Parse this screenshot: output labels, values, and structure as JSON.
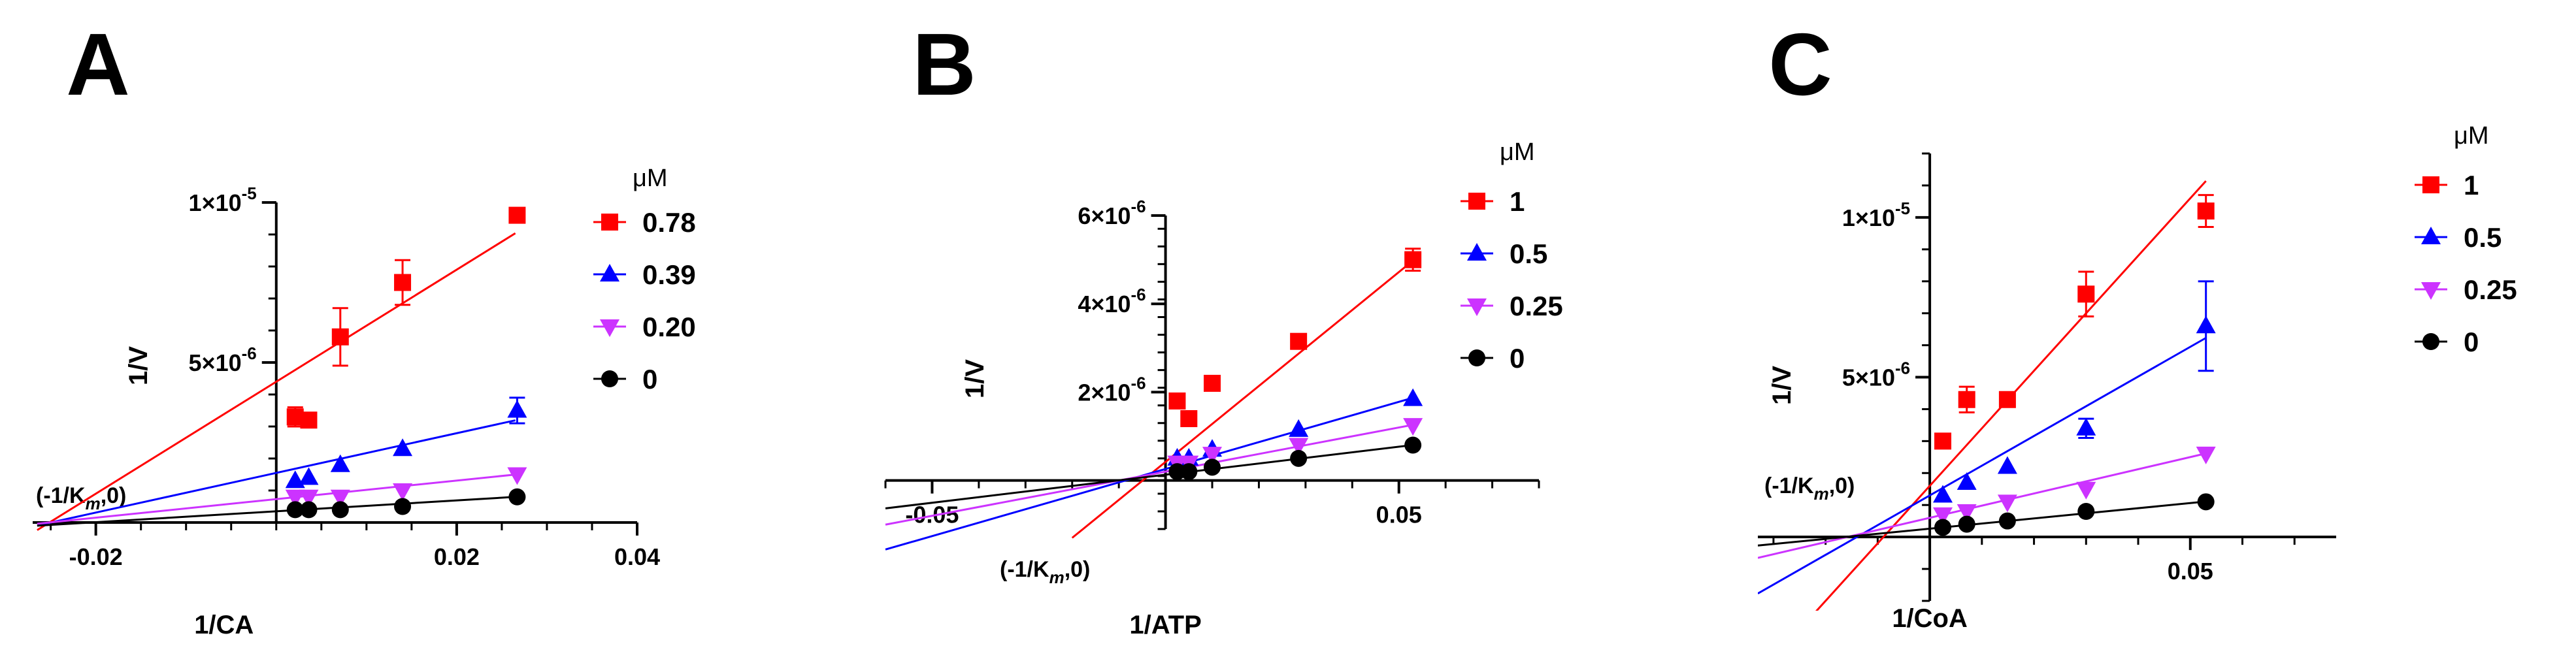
{
  "chart_data": [
    {
      "panel": "A",
      "type": "scatter",
      "xlabel": "1/CA",
      "ylabel": "1/V",
      "xlim": [
        -0.027,
        0.04
      ],
      "ylim": [
        0,
        1e-05
      ],
      "xticks": [
        {
          "value": -0.02,
          "label": "-0.02"
        },
        {
          "value": 0.02,
          "label": "0.02"
        },
        {
          "value": 0.04,
          "label": "0.04"
        }
      ],
      "yticks": [
        {
          "value": 5e-06,
          "label": "5×10",
          "exp": "-6"
        },
        {
          "value": 1e-05,
          "label": "1×10",
          "exp": "-5"
        }
      ],
      "annotation": "(-1/K",
      "annotation_sub": "m",
      "annotation_end": ",0)",
      "legend_title": "μM",
      "series": [
        {
          "name": "0.78",
          "color": "#ff0000",
          "marker": "square",
          "x": [
            0.0021,
            0.0036,
            0.0071,
            0.014,
            0.0267
          ],
          "y": [
            3.3e-06,
            3.2e-06,
            5.8e-06,
            7.5e-06,
            9.6e-06
          ],
          "err": [
            3e-07,
            0,
            9e-07,
            7e-07,
            2e-07
          ],
          "fit": [
            -0.0265,
            0.0265
          ],
          "fit_slope": 0.000175,
          "fit_intercept": 4.4e-06
        },
        {
          "name": "0.39",
          "color": "#0000ff",
          "marker": "triangle-up",
          "x": [
            0.0021,
            0.0036,
            0.0071,
            0.014,
            0.0267
          ],
          "y": [
            1.3e-06,
            1.4e-06,
            1.8e-06,
            2.3e-06,
            3.5e-06
          ],
          "err": [
            0,
            0,
            0,
            0,
            4e-07
          ],
          "fit": [
            -0.0265,
            0.0265
          ],
          "fit_slope": 6.2e-05,
          "fit_intercept": 1.55e-06
        },
        {
          "name": "0.20",
          "color": "#cc33ff",
          "marker": "triangle-down",
          "x": [
            0.0021,
            0.0036,
            0.0071,
            0.014,
            0.0267
          ],
          "y": [
            8e-07,
            8e-07,
            8e-07,
            1e-06,
            1.5e-06
          ],
          "err": [
            0,
            0,
            0,
            0,
            0
          ],
          "fit": [
            -0.0265,
            0.0265
          ],
          "fit_slope": 2.9e-05,
          "fit_intercept": 7.3e-07
        },
        {
          "name": "0",
          "color": "#000000",
          "marker": "circle",
          "x": [
            0.0021,
            0.0036,
            0.0071,
            0.014,
            0.0267
          ],
          "y": [
            4e-07,
            4e-07,
            4e-07,
            5e-07,
            8e-07
          ],
          "err": [
            0,
            0,
            0,
            0,
            0
          ],
          "fit": [
            -0.0265,
            0.0265
          ],
          "fit_slope": 1.7e-05,
          "fit_intercept": 3.5e-07
        }
      ]
    },
    {
      "panel": "B",
      "type": "scatter",
      "xlabel": "1/ATP",
      "ylabel": "1/V",
      "xlim": [
        -0.06,
        0.08
      ],
      "ylim": [
        -1.1e-06,
        6e-06
      ],
      "xticks": [
        {
          "value": -0.05,
          "label": "-0.05"
        },
        {
          "value": 0.05,
          "label": "0.05"
        }
      ],
      "yticks": [
        {
          "value": 2e-06,
          "label": "2×10",
          "exp": "-6"
        },
        {
          "value": 4e-06,
          "label": "4×10",
          "exp": "-6"
        },
        {
          "value": 6e-06,
          "label": "6×10",
          "exp": "-6"
        }
      ],
      "annotation": "(-1/K",
      "annotation_sub": "m",
      "annotation_end": ",0)",
      "legend_title": "μM",
      "series": [
        {
          "name": "1",
          "color": "#ff0000",
          "marker": "square",
          "x": [
            0.0025,
            0.005,
            0.01,
            0.0285,
            0.053
          ],
          "y": [
            1.8e-06,
            1.4e-06,
            2.2e-06,
            3.15e-06,
            5e-06
          ],
          "err": [
            0,
            0,
            0,
            1.2e-07,
            2.5e-07
          ],
          "fit": [
            -0.02,
            0.0532
          ],
          "fit_slope": 8.6e-05,
          "fit_intercept": 4.2e-07
        },
        {
          "name": "0.5",
          "color": "#0000ff",
          "marker": "triangle-up",
          "x": [
            0.0025,
            0.005,
            0.01,
            0.0285,
            0.053
          ],
          "y": [
            5e-07,
            5e-07,
            7e-07,
            1.15e-06,
            1.85e-06
          ],
          "err": [
            0,
            0,
            0,
            0,
            0
          ],
          "fit": [
            -0.06,
            0.0532
          ],
          "fit_slope": 3.04e-05,
          "fit_intercept": 2.6e-07
        },
        {
          "name": "0.25",
          "color": "#cc33ff",
          "marker": "triangle-down",
          "x": [
            0.0025,
            0.005,
            0.01,
            0.0285,
            0.053
          ],
          "y": [
            4e-07,
            4e-07,
            6e-07,
            8e-07,
            1.25e-06
          ],
          "err": [
            0,
            0,
            0,
            0,
            0
          ],
          "fit": [
            -0.06,
            0.0532
          ],
          "fit_slope": 2e-05,
          "fit_intercept": 2e-07
        },
        {
          "name": "0",
          "color": "#000000",
          "marker": "circle",
          "x": [
            0.0025,
            0.005,
            0.01,
            0.0285,
            0.053
          ],
          "y": [
            2e-07,
            2e-07,
            3e-07,
            5e-07,
            8e-07
          ],
          "err": [
            0,
            0,
            0,
            0,
            0
          ],
          "fit": [
            -0.06,
            0.0532
          ],
          "fit_slope": 1.27e-05,
          "fit_intercept": 1.3e-07
        }
      ]
    },
    {
      "panel": "C",
      "type": "scatter",
      "xlabel": "1/CoA",
      "ylabel": "1/V",
      "xlim": [
        -0.033,
        0.078
      ],
      "ylim": [
        -2e-06,
        1.2e-05
      ],
      "xticks": [
        {
          "value": 0.05,
          "label": "0.05"
        }
      ],
      "yticks": [
        {
          "value": 5e-06,
          "label": "5×10",
          "exp": "-6"
        },
        {
          "value": 1e-05,
          "label": "1×10",
          "exp": "-5"
        }
      ],
      "annotation": "(-1/K",
      "annotation_sub": "m",
      "annotation_end": ",0)",
      "legend_title": "μM",
      "series": [
        {
          "name": "1",
          "color": "#ff0000",
          "marker": "square",
          "x": [
            0.0025,
            0.0071,
            0.0149,
            0.03,
            0.053
          ],
          "y": [
            3e-06,
            4.3e-06,
            4.3e-06,
            7.6e-06,
            1.02e-05
          ],
          "err": [
            0,
            4e-07,
            0,
            7e-07,
            5e-07
          ],
          "fit": [
            -0.033,
            0.053
          ],
          "fit_slope": 0.00018,
          "fit_intercept": 1.6e-06
        },
        {
          "name": "0.5",
          "color": "#0000ff",
          "marker": "triangle-up",
          "x": [
            0.0025,
            0.0071,
            0.0149,
            0.03,
            0.053
          ],
          "y": [
            1.3e-06,
            1.7e-06,
            2.2e-06,
            3.4e-06,
            6.6e-06
          ],
          "err": [
            0,
            0,
            0,
            3e-07,
            1.4e-06
          ],
          "fit": [
            -0.033,
            0.053
          ],
          "fit_slope": 9.3e-05,
          "fit_intercept": 1.3e-06
        },
        {
          "name": "0.25",
          "color": "#cc33ff",
          "marker": "triangle-down",
          "x": [
            0.0025,
            0.0071,
            0.0149,
            0.03,
            0.053
          ],
          "y": [
            7e-07,
            8e-07,
            1.1e-06,
            1.5e-06,
            2.6e-06
          ],
          "err": [
            0,
            0,
            0,
            0,
            0
          ],
          "fit": [
            -0.033,
            0.053
          ],
          "fit_slope": 3.8e-05,
          "fit_intercept": 6e-07
        },
        {
          "name": "0",
          "color": "#000000",
          "marker": "circle",
          "x": [
            0.0025,
            0.0071,
            0.0149,
            0.03,
            0.053
          ],
          "y": [
            3e-07,
            4e-07,
            5e-07,
            8e-07,
            1.1e-06
          ],
          "err": [
            0,
            0,
            0,
            0,
            0
          ],
          "fit": [
            -0.033,
            0.053
          ],
          "fit_slope": 1.6e-05,
          "fit_intercept": 2.6e-07
        }
      ]
    }
  ]
}
